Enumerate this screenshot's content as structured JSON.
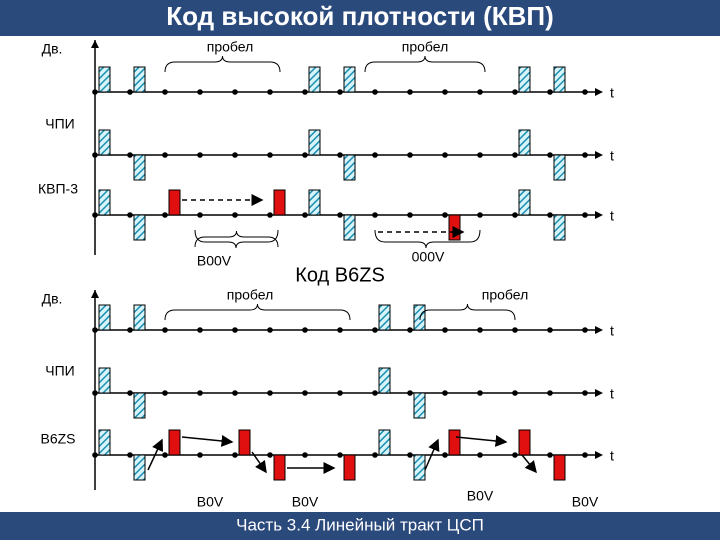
{
  "header": {
    "title": "Код высокой плотности (КВП)"
  },
  "top": {
    "rows": [
      {
        "label": "Дв.",
        "axis": "t"
      },
      {
        "label": "ЧПИ",
        "axis": "t"
      },
      {
        "label": "КВП-3",
        "axis": "t"
      }
    ],
    "gaps": [
      "пробел",
      "пробел"
    ],
    "substitutions": [
      "В00V",
      "000V"
    ]
  },
  "middle_title": "Код B6ZS",
  "bottom": {
    "rows": [
      {
        "label": "Дв.",
        "axis": "t"
      },
      {
        "label": "ЧПИ",
        "axis": "t"
      },
      {
        "label": "B6ZS",
        "axis": "t"
      }
    ],
    "gaps": [
      "пробел",
      "пробел"
    ],
    "substitutions": [
      "B0V",
      "B0V",
      "B0V",
      "B0V"
    ]
  },
  "footer": {
    "text": "Часть 3.4 Линейный тракт ЦСП"
  }
}
